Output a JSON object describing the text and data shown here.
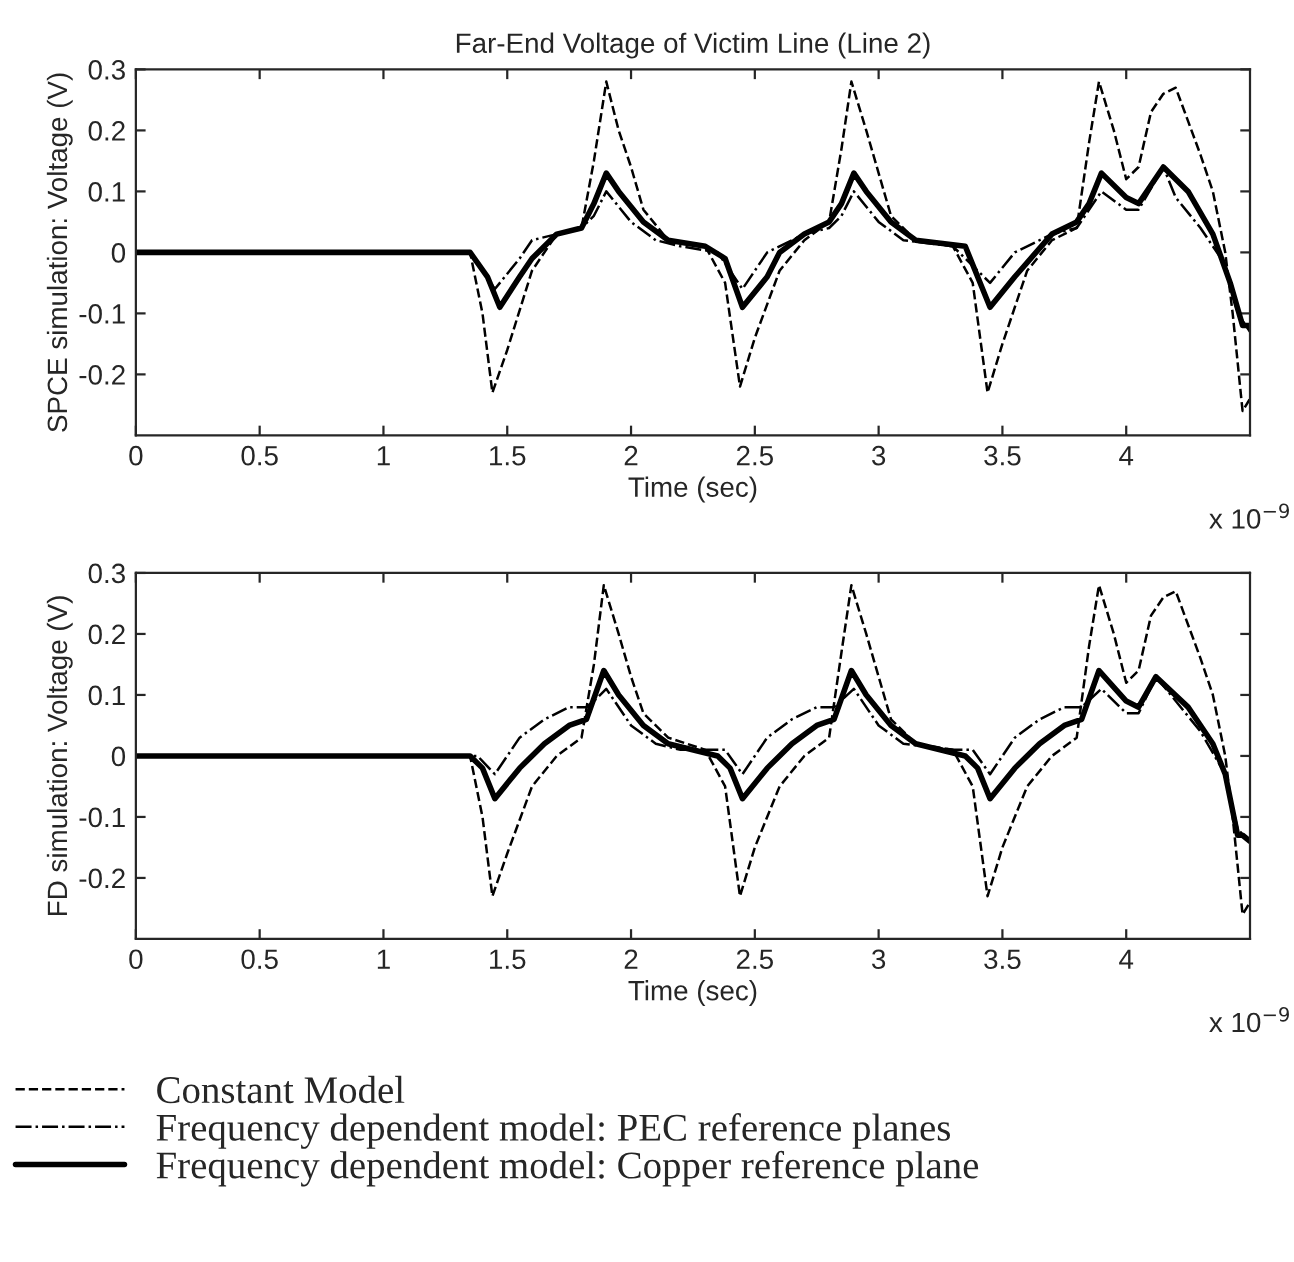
{
  "chart_data": [
    {
      "type": "line",
      "title": "Far-End Voltage of Victim Line (Line 2)",
      "xlabel": "Time (sec)",
      "ylabel": "SPCE simulation: Voltage (V)",
      "xlim": [
        0,
        4.5
      ],
      "xticks": [
        0,
        0.5,
        1,
        1.5,
        2,
        2.5,
        3,
        3.5,
        4
      ],
      "ylim": [
        -0.3,
        0.3
      ],
      "yticks": [
        -0.2,
        -0.1,
        0,
        0.1,
        0.2,
        0.3
      ],
      "grid": false,
      "legend": false,
      "annotations": [
        "x 10$^{−9}$"
      ],
      "series": [
        {
          "color": "#000000",
          "line_style": "dashed",
          "x": [
            0,
            1.2,
            1.35,
            1.4,
            1.44,
            1.5,
            1.6,
            1.7,
            1.8,
            1.85,
            1.9,
            1.95,
            2.0,
            2.05,
            2.15,
            2.3,
            2.38,
            2.44,
            2.5,
            2.6,
            2.7,
            2.8,
            2.85,
            2.89,
            2.95,
            3.0,
            3.05,
            3.15,
            3.3,
            3.38,
            3.44,
            3.5,
            3.6,
            3.7,
            3.8,
            3.85,
            3.89,
            3.95,
            4.0,
            4.05,
            4.1,
            4.15,
            4.2,
            4.3,
            4.35,
            4.4,
            4.43,
            4.47,
            4.5
          ],
          "values": [
            0,
            0,
            0,
            -0.1,
            -0.23,
            -0.16,
            -0.03,
            0.03,
            0.04,
            0.15,
            0.28,
            0.2,
            0.14,
            0.07,
            0.02,
            0.01,
            -0.05,
            -0.22,
            -0.14,
            -0.03,
            0.02,
            0.05,
            0.17,
            0.28,
            0.2,
            0.13,
            0.06,
            0.02,
            0.01,
            -0.05,
            -0.23,
            -0.15,
            -0.03,
            0.02,
            0.04,
            0.18,
            0.28,
            0.2,
            0.12,
            0.14,
            0.23,
            0.26,
            0.27,
            0.16,
            0.1,
            0.0,
            -0.1,
            -0.26,
            -0.24
          ]
        },
        {
          "color": "#000000",
          "line_style": "dashdot",
          "x": [
            0,
            1.35,
            1.45,
            1.55,
            1.6,
            1.7,
            1.8,
            1.85,
            1.9,
            2.0,
            2.1,
            2.2,
            2.35,
            2.45,
            2.55,
            2.7,
            2.8,
            2.85,
            2.9,
            3.0,
            3.1,
            3.3,
            3.45,
            3.55,
            3.7,
            3.8,
            3.9,
            4.0,
            4.05,
            4.15,
            4.2,
            4.3,
            4.4,
            4.45,
            4.5
          ],
          "values": [
            0,
            0,
            -0.06,
            -0.01,
            0.02,
            0.03,
            0.04,
            0.06,
            0.1,
            0.05,
            0.02,
            0.01,
            0.0,
            -0.06,
            0.0,
            0.03,
            0.04,
            0.06,
            0.1,
            0.05,
            0.02,
            0.01,
            -0.05,
            0.0,
            0.03,
            0.04,
            0.1,
            0.07,
            0.07,
            0.14,
            0.09,
            0.04,
            -0.02,
            -0.1,
            -0.13
          ]
        },
        {
          "color": "#000000",
          "line_style": "solid",
          "x": [
            0,
            1.35,
            1.42,
            1.47,
            1.55,
            1.6,
            1.7,
            1.8,
            1.85,
            1.9,
            1.95,
            2.05,
            2.15,
            2.3,
            2.38,
            2.45,
            2.55,
            2.6,
            2.7,
            2.8,
            2.85,
            2.9,
            2.95,
            3.05,
            3.15,
            3.35,
            3.45,
            3.55,
            3.7,
            3.8,
            3.85,
            3.9,
            4.0,
            4.05,
            4.1,
            4.15,
            4.25,
            4.35,
            4.42,
            4.47,
            4.5
          ],
          "values": [
            0,
            0,
            -0.04,
            -0.09,
            -0.04,
            -0.01,
            0.03,
            0.04,
            0.08,
            0.13,
            0.1,
            0.05,
            0.02,
            0.01,
            -0.01,
            -0.09,
            -0.04,
            0.0,
            0.03,
            0.05,
            0.08,
            0.13,
            0.1,
            0.05,
            0.02,
            0.01,
            -0.09,
            -0.04,
            0.03,
            0.05,
            0.08,
            0.13,
            0.09,
            0.08,
            0.11,
            0.14,
            0.1,
            0.03,
            -0.05,
            -0.12,
            -0.12
          ]
        }
      ]
    },
    {
      "type": "line",
      "xlabel": "Time (sec)",
      "ylabel": "FD simulation: Voltage (V)",
      "xlim": [
        0,
        4.5
      ],
      "xticks": [
        0,
        0.5,
        1,
        1.5,
        2,
        2.5,
        3,
        3.5,
        4
      ],
      "ylim": [
        -0.3,
        0.3
      ],
      "yticks": [
        -0.2,
        -0.1,
        0,
        0.1,
        0.2,
        0.3
      ],
      "grid": false,
      "legend": "bottom",
      "annotations": [
        "x 10$^{−9}$"
      ],
      "series": [
        {
          "name": "Constant Model",
          "color": "#000000",
          "line_style": "dashed",
          "x": [
            0,
            1.35,
            1.4,
            1.44,
            1.5,
            1.6,
            1.7,
            1.8,
            1.85,
            1.89,
            1.95,
            2.0,
            2.05,
            2.15,
            2.3,
            2.38,
            2.44,
            2.5,
            2.6,
            2.7,
            2.8,
            2.85,
            2.89,
            2.95,
            3.0,
            3.05,
            3.15,
            3.3,
            3.38,
            3.44,
            3.5,
            3.6,
            3.7,
            3.8,
            3.85,
            3.89,
            3.95,
            4.0,
            4.05,
            4.1,
            4.15,
            4.2,
            4.3,
            4.35,
            4.4,
            4.43,
            4.47,
            4.5
          ],
          "values": [
            0,
            0,
            -0.1,
            -0.23,
            -0.16,
            -0.05,
            0.0,
            0.03,
            0.15,
            0.28,
            0.2,
            0.13,
            0.07,
            0.03,
            0.01,
            -0.05,
            -0.23,
            -0.15,
            -0.05,
            0.0,
            0.03,
            0.17,
            0.28,
            0.2,
            0.13,
            0.06,
            0.02,
            0.01,
            -0.05,
            -0.23,
            -0.15,
            -0.05,
            0.0,
            0.03,
            0.18,
            0.28,
            0.2,
            0.12,
            0.14,
            0.23,
            0.26,
            0.27,
            0.16,
            0.1,
            0.0,
            -0.1,
            -0.26,
            -0.24
          ]
        },
        {
          "name": "Frequency dependent model: PEC reference planes",
          "color": "#000000",
          "line_style": "dashdot",
          "x": [
            0,
            1.38,
            1.45,
            1.55,
            1.65,
            1.75,
            1.82,
            1.85,
            1.9,
            2.0,
            2.1,
            2.2,
            2.38,
            2.45,
            2.55,
            2.65,
            2.75,
            2.82,
            2.9,
            3.0,
            3.1,
            3.3,
            3.38,
            3.45,
            3.55,
            3.65,
            3.75,
            3.82,
            3.9,
            4.0,
            4.05,
            4.12,
            4.2,
            4.3,
            4.4,
            4.45,
            4.5
          ],
          "values": [
            0,
            0,
            -0.03,
            0.03,
            0.06,
            0.08,
            0.08,
            0.09,
            0.11,
            0.05,
            0.02,
            0.01,
            0.01,
            -0.03,
            0.03,
            0.06,
            0.08,
            0.08,
            0.11,
            0.05,
            0.02,
            0.01,
            0.01,
            -0.03,
            0.03,
            0.06,
            0.08,
            0.08,
            0.11,
            0.07,
            0.07,
            0.13,
            0.09,
            0.04,
            -0.03,
            -0.12,
            -0.14
          ]
        },
        {
          "name": "Frequency dependent model: Copper reference plane",
          "color": "#000000",
          "line_style": "solid",
          "x": [
            0,
            1.35,
            1.4,
            1.45,
            1.55,
            1.65,
            1.75,
            1.82,
            1.89,
            1.95,
            2.05,
            2.15,
            2.35,
            2.4,
            2.45,
            2.55,
            2.65,
            2.75,
            2.82,
            2.89,
            2.95,
            3.05,
            3.15,
            3.35,
            3.4,
            3.45,
            3.55,
            3.65,
            3.75,
            3.82,
            3.89,
            4.0,
            4.05,
            4.12,
            4.25,
            4.35,
            4.4,
            4.45,
            4.47,
            4.5
          ],
          "values": [
            0,
            0,
            -0.02,
            -0.07,
            -0.02,
            0.02,
            0.05,
            0.06,
            0.14,
            0.1,
            0.05,
            0.02,
            0.0,
            -0.02,
            -0.07,
            -0.02,
            0.02,
            0.05,
            0.06,
            0.14,
            0.1,
            0.05,
            0.02,
            0.0,
            -0.02,
            -0.07,
            -0.02,
            0.02,
            0.05,
            0.06,
            0.14,
            0.09,
            0.08,
            0.13,
            0.08,
            0.02,
            -0.03,
            -0.13,
            -0.13,
            -0.14
          ]
        }
      ]
    }
  ]
}
